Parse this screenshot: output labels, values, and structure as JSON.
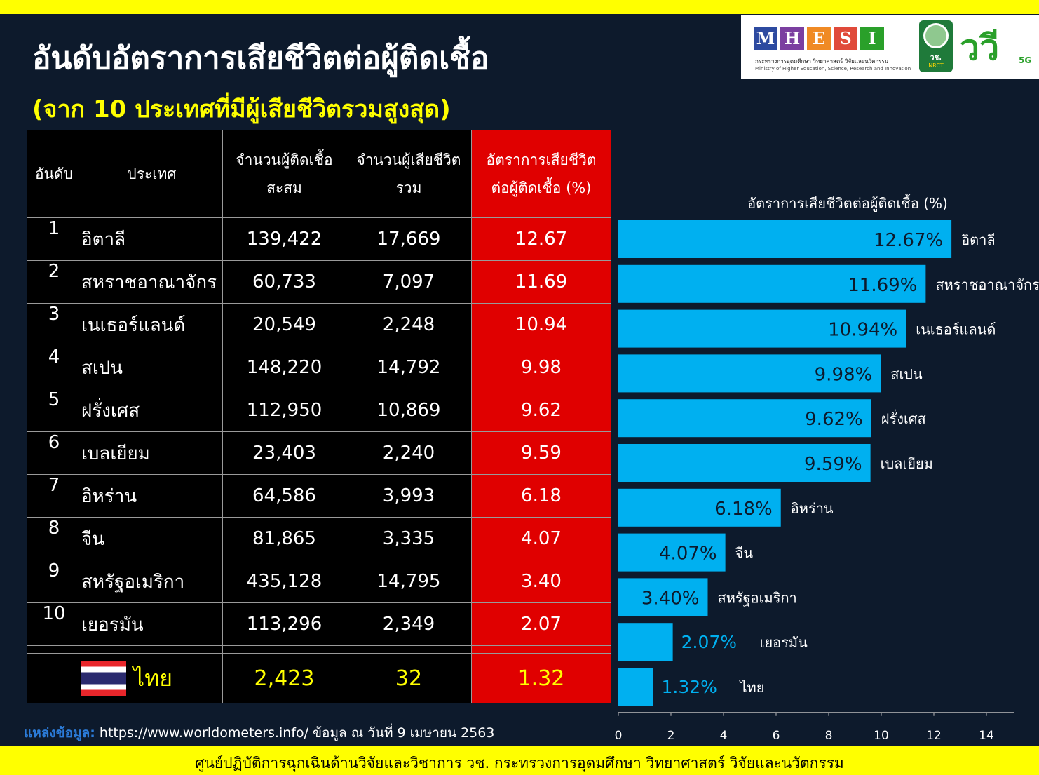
{
  "title": "อันดับอัตราการเสียชีวิตต่อผู้ติดเชื้อ",
  "subtitle": "(จาก 10 ประเทศที่มีผู้เสียชีวิตรวมสูงสุด)",
  "logos": {
    "mhesi_letters": [
      "M",
      "H",
      "E",
      "S",
      "I"
    ],
    "mhesi_colors": [
      "#2d4aa0",
      "#7b3fa0",
      "#f08a24",
      "#e04a3a",
      "#2aa02a"
    ],
    "mhesi_th": "กระทรวงการอุดมศึกษา วิทยาศาสตร์ วิจัยและนวัตกรรม",
    "mhesi_en": "Ministry of Higher Education, Science, Research and Innovation",
    "nrct_th": "วช.",
    "nrct_en": "NRCT",
    "campaign": "ววี",
    "campaign_suffix": "5G"
  },
  "table": {
    "headers": {
      "rank": "อันดับ",
      "country": "ประเทศ",
      "cases_1": "จำนวนผู้ติดเชื้อ",
      "cases_2": "สะสม",
      "deaths_1": "จำนวนผู้เสียชีวิต",
      "deaths_2": "รวม",
      "rate_1": "อัตราการเสียชีวิต",
      "rate_2": "ต่อผู้ติดเชื้อ (%)"
    },
    "rows": [
      {
        "rank": "1",
        "country": "อิตาลี",
        "cases": "139,422",
        "deaths": "17,669",
        "rate": "12.67"
      },
      {
        "rank": "2",
        "country": "สหราชอาณาจักร",
        "cases": "60,733",
        "deaths": "7,097",
        "rate": "11.69"
      },
      {
        "rank": "3",
        "country": "เนเธอร์แลนด์",
        "cases": "20,549",
        "deaths": "2,248",
        "rate": "10.94"
      },
      {
        "rank": "4",
        "country": "สเปน",
        "cases": "148,220",
        "deaths": "14,792",
        "rate": "9.98"
      },
      {
        "rank": "5",
        "country": "ฝรั่งเศส",
        "cases": "112,950",
        "deaths": "10,869",
        "rate": "9.62"
      },
      {
        "rank": "6",
        "country": "เบลเยียม",
        "cases": "23,403",
        "deaths": "2,240",
        "rate": "9.59"
      },
      {
        "rank": "7",
        "country": "อิหร่าน",
        "cases": "64,586",
        "deaths": "3,993",
        "rate": "6.18"
      },
      {
        "rank": "8",
        "country": "จีน",
        "cases": "81,865",
        "deaths": "3,335",
        "rate": "4.07"
      },
      {
        "rank": "9",
        "country": "สหรัฐอเมริกา",
        "cases": "435,128",
        "deaths": "14,795",
        "rate": "3.40"
      },
      {
        "rank": "10",
        "country": "เยอรมัน",
        "cases": "113,296",
        "deaths": "2,349",
        "rate": "2.07"
      }
    ],
    "thailand": {
      "country": "ไทย",
      "cases": "2,423",
      "deaths": "32",
      "rate": "1.32"
    }
  },
  "chart_data": {
    "type": "bar",
    "orientation": "horizontal",
    "title": "อัตราการเสียชีวิตต่อผู้ติดเชื้อ (%)",
    "categories": [
      "อิตาลี",
      "สหราชอาณาจักร",
      "เนเธอร์แลนด์",
      "สเปน",
      "ฝรั่งเศส",
      "เบลเยียม",
      "อิหร่าน",
      "จีน",
      "สหรัฐอเมริกา",
      "เยอรมัน",
      "ไทย"
    ],
    "values": [
      12.67,
      11.69,
      10.94,
      9.98,
      9.62,
      9.59,
      6.18,
      4.07,
      3.4,
      2.07,
      1.32
    ],
    "data_labels": [
      "12.67%",
      "11.69%",
      "10.94%",
      "9.98%",
      "9.62%",
      "9.59%",
      "6.18%",
      "4.07%",
      "3.40%",
      "2.07%",
      "1.32%"
    ],
    "xlim": [
      0,
      14
    ],
    "xticks": [
      0,
      2,
      4,
      6,
      8,
      10,
      12,
      14
    ],
    "xlabel": "",
    "ylabel": "",
    "bar_color": "#00b0f0",
    "label_color_inside": "#0d1a2c",
    "label_color_outside": "#00b0f0",
    "grid": false
  },
  "source": {
    "label": "แหล่งข้อมูล:",
    "url": "https://www.worldometers.info/",
    "note": "ข้อมูล ณ วันที่ 9 เมษายน 2563"
  },
  "footer": "ศูนย์ปฏิบัติการฉุกเฉินด้านวิจัยและวิชาการ   วช.   กระทรวงการอุดมศึกษา วิทยาศาสตร์ วิจัยและนวัตกรรม"
}
